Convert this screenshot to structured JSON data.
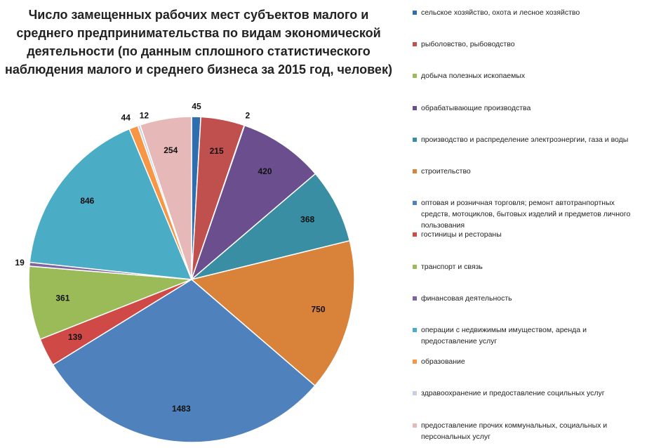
{
  "chart_data": {
    "type": "pie",
    "title": "Число замещенных рабочих мест субъектов малого и среднего предпринимательства по видам экономической деятельности (по данным сплошного статистического наблюдения малого и среднего бизнеса за 2015 год, человек)",
    "categories": [
      "сельское хозяйство, охота и лесное хозяйство",
      "рыболовство, рыбоводство",
      "добыча полезных ископаемых",
      "обрабатывающие производства",
      "производство и распределение электроэнергии, газа и воды",
      "строительство",
      "оптовая и розничная торговля; ремонт автотранпортных средств, мотоциклов, бытовых изделий и предметов личного пользования",
      "гостиницы и рестораны",
      "транспорт и связь",
      "финансовая деятельность",
      "операции с недвижимым имуществом, аренда и предоставление услуг",
      "образование",
      "здравоохранение и предоставление социльных услуг",
      "предоставление прочих коммунальных, социальных и персональных услуг"
    ],
    "values": [
      45,
      215,
      2,
      420,
      368,
      750,
      1483,
      139,
      361,
      19,
      846,
      44,
      12,
      254
    ],
    "colors": [
      "#2f6eae",
      "#c0504d",
      "#9bbb59",
      "#6a4e8e",
      "#3a8ea3",
      "#d8823a",
      "#4f81bd",
      "#cf4a47",
      "#9bbb59",
      "#8064a2",
      "#4bacc6",
      "#f79646",
      "#c5d0e2",
      "#e6b9b8"
    ],
    "legend": "right"
  }
}
